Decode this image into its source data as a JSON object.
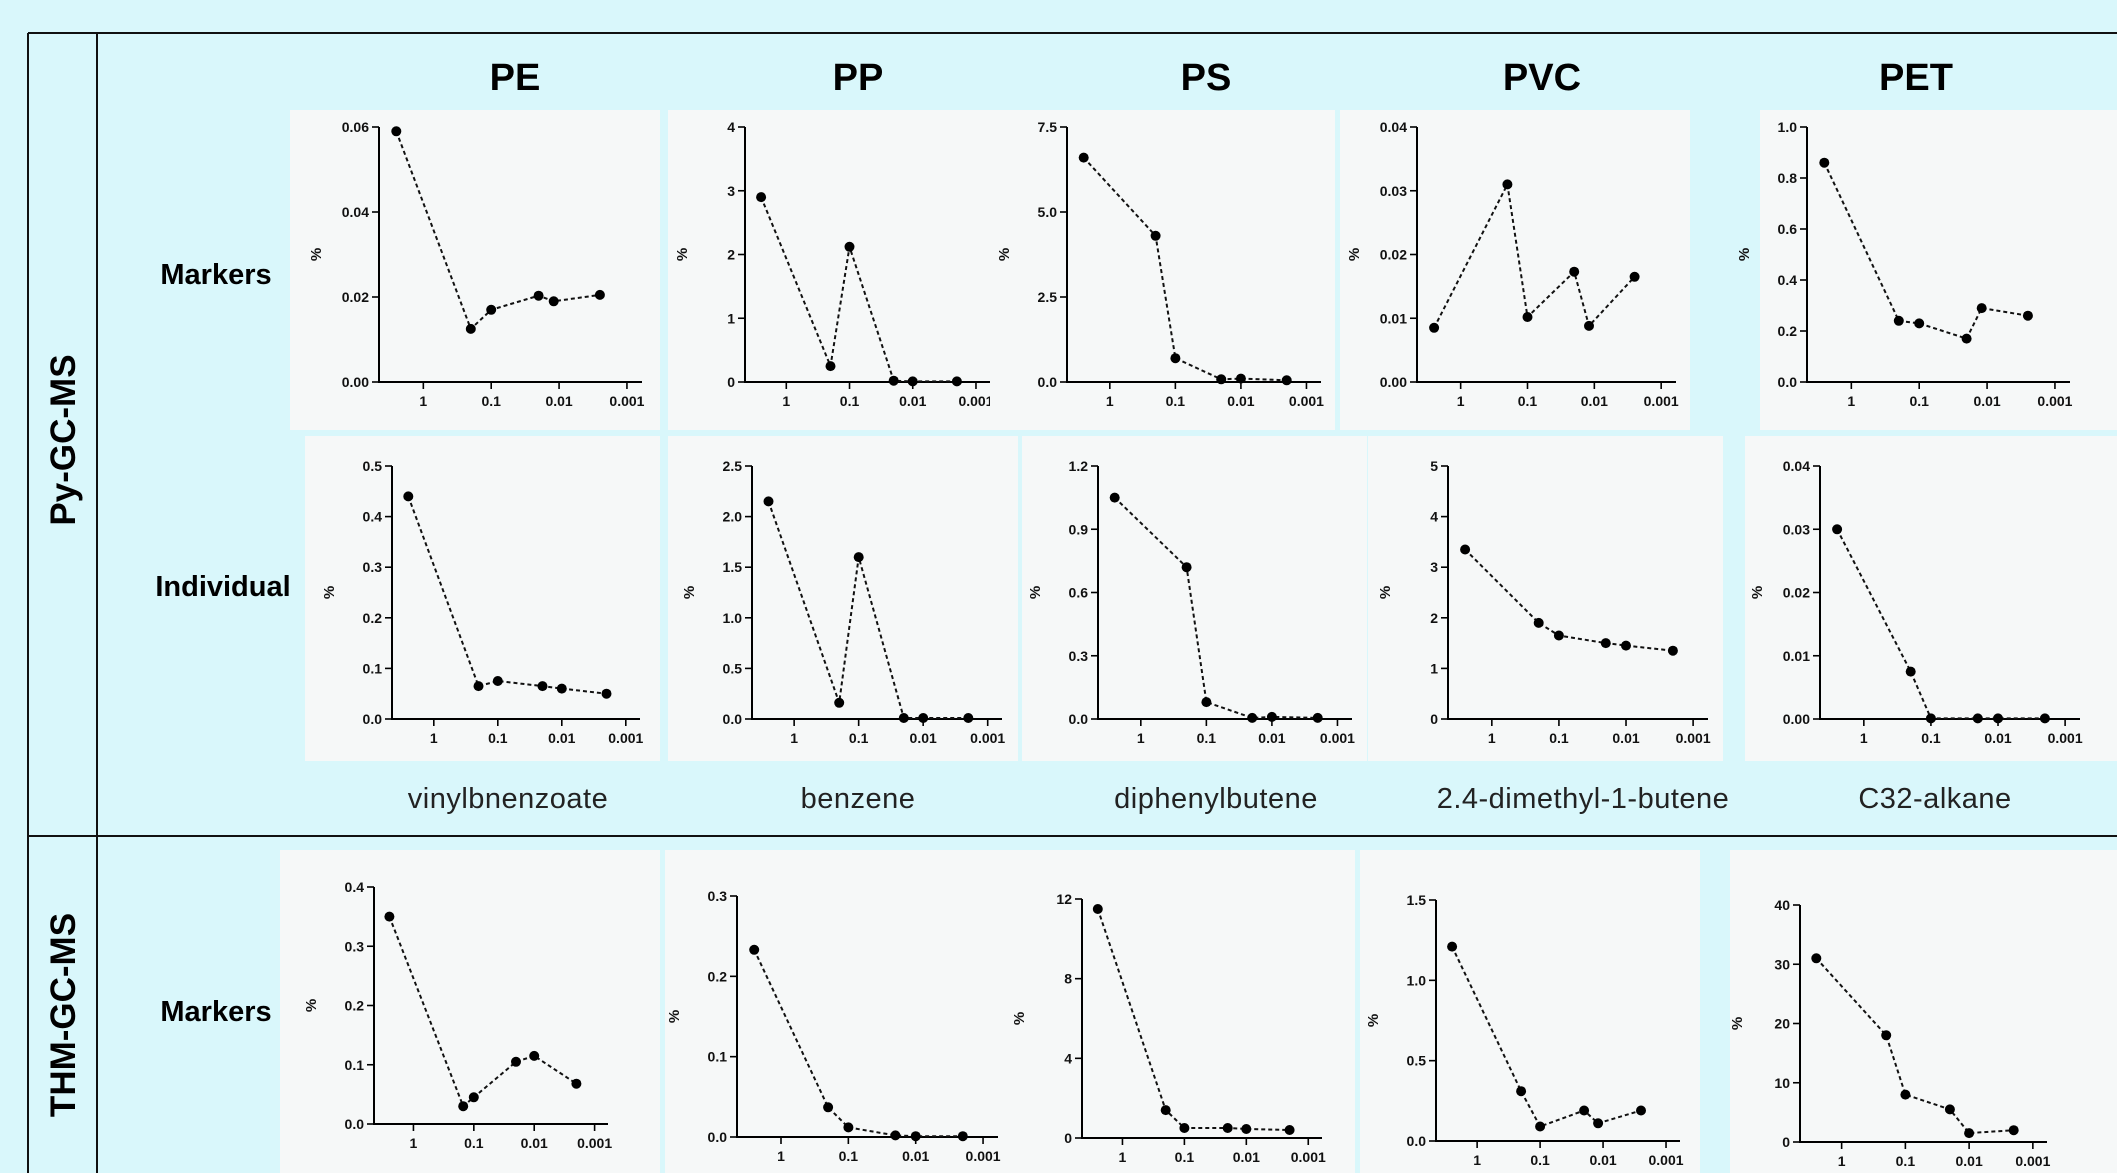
{
  "side_labels": [
    "Py-GC-MS",
    "THM-GC-MS"
  ],
  "row_labels": [
    "Markers",
    "Individual",
    "Markers"
  ],
  "columns": [
    "PE",
    "PP",
    "PS",
    "PVC",
    "PET"
  ],
  "compounds": [
    "vinylbnenzoate",
    "benzene",
    "diphenylbutene",
    "2.4-dimethyl-1-butene",
    "C32-alkane"
  ],
  "colors": {
    "background": "#d9f7fb",
    "series": "#111111"
  },
  "chart_data": [
    {
      "type": "line",
      "panel": "PE Py-GC-MS Markers",
      "ylabel": "%",
      "x": [
        2.5,
        0.2,
        0.1,
        0.02,
        0.012,
        0.0025
      ],
      "y": [
        0.059,
        0.0125,
        0.017,
        0.0203,
        0.019,
        0.0205
      ],
      "ylim": [
        0,
        0.06
      ],
      "yticks": [
        "0.00",
        "0.02",
        "0.04",
        "0.06"
      ],
      "xticks": [
        "1",
        "0.1",
        "0.01",
        "0.001"
      ]
    },
    {
      "type": "line",
      "panel": "PP Py-GC-MS Markers",
      "ylabel": "%",
      "x": [
        2.5,
        0.2,
        0.1,
        0.02,
        0.01,
        0.002
      ],
      "y": [
        2.9,
        0.25,
        2.12,
        0.02,
        0.01,
        0.01
      ],
      "ylim": [
        0,
        4
      ],
      "yticks": [
        "0",
        "1",
        "2",
        "3",
        "4"
      ],
      "xticks": [
        "1",
        "0.1",
        "0.01",
        "0.001"
      ]
    },
    {
      "type": "line",
      "panel": "PS Py-GC-MS Markers",
      "ylabel": "%",
      "x": [
        2.5,
        0.2,
        0.1,
        0.02,
        0.01,
        0.002
      ],
      "y": [
        6.6,
        4.3,
        0.7,
        0.08,
        0.1,
        0.05
      ],
      "ylim": [
        0,
        7.5
      ],
      "yticks": [
        "0.0",
        "2.5",
        "5.0",
        "7.5"
      ],
      "xticks": [
        "1",
        "0.1",
        "0.01",
        "0.001"
      ]
    },
    {
      "type": "line",
      "panel": "PVC Py-GC-MS Markers",
      "ylabel": "%",
      "x": [
        2.5,
        0.2,
        0.1,
        0.02,
        0.012,
        0.0025
      ],
      "y": [
        0.0085,
        0.031,
        0.0102,
        0.0173,
        0.0088,
        0.0165
      ],
      "ylim": [
        0,
        0.04
      ],
      "yticks": [
        "0.00",
        "0.01",
        "0.02",
        "0.03",
        "0.04"
      ],
      "xticks": [
        "1",
        "0.1",
        "0.01",
        "0.001"
      ]
    },
    {
      "type": "line",
      "panel": "PET Py-GC-MS Markers",
      "ylabel": "%",
      "x": [
        2.5,
        0.2,
        0.1,
        0.02,
        0.012,
        0.0025
      ],
      "y": [
        0.86,
        0.24,
        0.23,
        0.17,
        0.29,
        0.26
      ],
      "ylim": [
        0,
        1.0
      ],
      "yticks": [
        "0.0",
        "0.2",
        "0.4",
        "0.6",
        "0.8",
        "1.0"
      ],
      "xticks": [
        "1",
        "0.1",
        "0.01",
        "0.001"
      ]
    },
    {
      "type": "line",
      "panel": "PE Py-GC-MS Individual",
      "ylabel": "%",
      "x": [
        2.5,
        0.2,
        0.1,
        0.02,
        0.01,
        0.002
      ],
      "y": [
        0.44,
        0.065,
        0.075,
        0.065,
        0.06,
        0.05
      ],
      "ylim": [
        0,
        0.5
      ],
      "yticks": [
        "0.0",
        "0.1",
        "0.2",
        "0.3",
        "0.4",
        "0.5"
      ],
      "xticks": [
        "1",
        "0.1",
        "0.01",
        "0.001"
      ]
    },
    {
      "type": "line",
      "panel": "PP Py-GC-MS Individual",
      "ylabel": "%",
      "x": [
        2.5,
        0.2,
        0.1,
        0.02,
        0.01,
        0.002
      ],
      "y": [
        2.15,
        0.16,
        1.6,
        0.01,
        0.01,
        0.01
      ],
      "ylim": [
        0,
        2.5
      ],
      "yticks": [
        "0.0",
        "0.5",
        "1.0",
        "1.5",
        "2.0",
        "2.5"
      ],
      "xticks": [
        "1",
        "0.1",
        "0.01",
        "0.001"
      ]
    },
    {
      "type": "line",
      "panel": "PS Py-GC-MS Individual",
      "ylabel": "%",
      "x": [
        2.5,
        0.2,
        0.1,
        0.02,
        0.01,
        0.002
      ],
      "y": [
        1.05,
        0.72,
        0.08,
        0.005,
        0.01,
        0.005
      ],
      "ylim": [
        0,
        1.2
      ],
      "yticks": [
        "0.0",
        "0.3",
        "0.6",
        "0.9",
        "1.2"
      ],
      "xticks": [
        "1",
        "0.1",
        "0.01",
        "0.001"
      ]
    },
    {
      "type": "line",
      "panel": "PVC Py-GC-MS Individual",
      "ylabel": "%",
      "x": [
        2.5,
        0.2,
        0.1,
        0.02,
        0.01,
        0.002
      ],
      "y": [
        3.35,
        1.9,
        1.65,
        1.5,
        1.45,
        1.35
      ],
      "ylim": [
        0,
        5
      ],
      "yticks": [
        "0",
        "1",
        "2",
        "3",
        "4",
        "5"
      ],
      "xticks": [
        "1",
        "0.1",
        "0.01",
        "0.001"
      ]
    },
    {
      "type": "line",
      "panel": "PET Py-GC-MS Individual",
      "ylabel": "%",
      "x": [
        2.5,
        0.2,
        0.1,
        0.02,
        0.01,
        0.002
      ],
      "y": [
        0.03,
        0.0075,
        0.0001,
        0.0001,
        0.0001,
        0.0001
      ],
      "ylim": [
        0,
        0.04
      ],
      "yticks": [
        "0.00",
        "0.01",
        "0.02",
        "0.03",
        "0.04"
      ],
      "xticks": [
        "1",
        "0.1",
        "0.01",
        "0.001"
      ]
    },
    {
      "type": "line",
      "panel": "PE THM-GC-MS Markers",
      "ylabel": "%",
      "x": [
        2.5,
        0.15,
        0.1,
        0.02,
        0.01,
        0.002
      ],
      "y": [
        0.35,
        0.03,
        0.045,
        0.105,
        0.115,
        0.068
      ],
      "ylim": [
        0,
        0.4
      ],
      "yticks": [
        "0.0",
        "0.1",
        "0.2",
        "0.3",
        "0.4"
      ],
      "xticks": [
        "1",
        "0.1",
        "0.01",
        "0.001"
      ]
    },
    {
      "type": "line",
      "panel": "PP THM-GC-MS Markers",
      "ylabel": "%",
      "x": [
        2.5,
        0.2,
        0.1,
        0.02,
        0.01,
        0.002
      ],
      "y": [
        0.233,
        0.037,
        0.012,
        0.002,
        0.001,
        0.001
      ],
      "ylim": [
        0,
        0.3
      ],
      "yticks": [
        "0.0",
        "0.1",
        "0.2",
        "0.3"
      ],
      "xticks": [
        "1",
        "0.1",
        "0.01",
        "0.001"
      ]
    },
    {
      "type": "line",
      "panel": "PS THM-GC-MS Markers",
      "ylabel": "%",
      "x": [
        2.5,
        0.2,
        0.1,
        0.02,
        0.01,
        0.002
      ],
      "y": [
        11.5,
        1.4,
        0.5,
        0.5,
        0.45,
        0.4
      ],
      "ylim": [
        0,
        12
      ],
      "yticks": [
        "0",
        "4",
        "8",
        "12"
      ],
      "xticks": [
        "1",
        "0.1",
        "0.01",
        "0.001"
      ]
    },
    {
      "type": "line",
      "panel": "PVC THM-GC-MS Markers",
      "ylabel": "%",
      "x": [
        2.5,
        0.2,
        0.1,
        0.02,
        0.012,
        0.0025
      ],
      "y": [
        1.21,
        0.31,
        0.09,
        0.19,
        0.11,
        0.19
      ],
      "ylim": [
        0,
        1.5
      ],
      "yticks": [
        "0.0",
        "0.5",
        "1.0",
        "1.5"
      ],
      "xticks": [
        "1",
        "0.1",
        "0.01",
        "0.001"
      ]
    },
    {
      "type": "line",
      "panel": "PET THM-GC-MS Markers",
      "ylabel": "%",
      "x": [
        2.5,
        0.2,
        0.1,
        0.02,
        0.01,
        0.002
      ],
      "y": [
        31,
        18,
        8,
        5.5,
        1.5,
        2
      ],
      "ylim": [
        0,
        40
      ],
      "yticks": [
        "0",
        "10",
        "20",
        "30",
        "40"
      ],
      "xticks": [
        "1",
        "0.1",
        "0.01",
        "0.001"
      ]
    }
  ]
}
